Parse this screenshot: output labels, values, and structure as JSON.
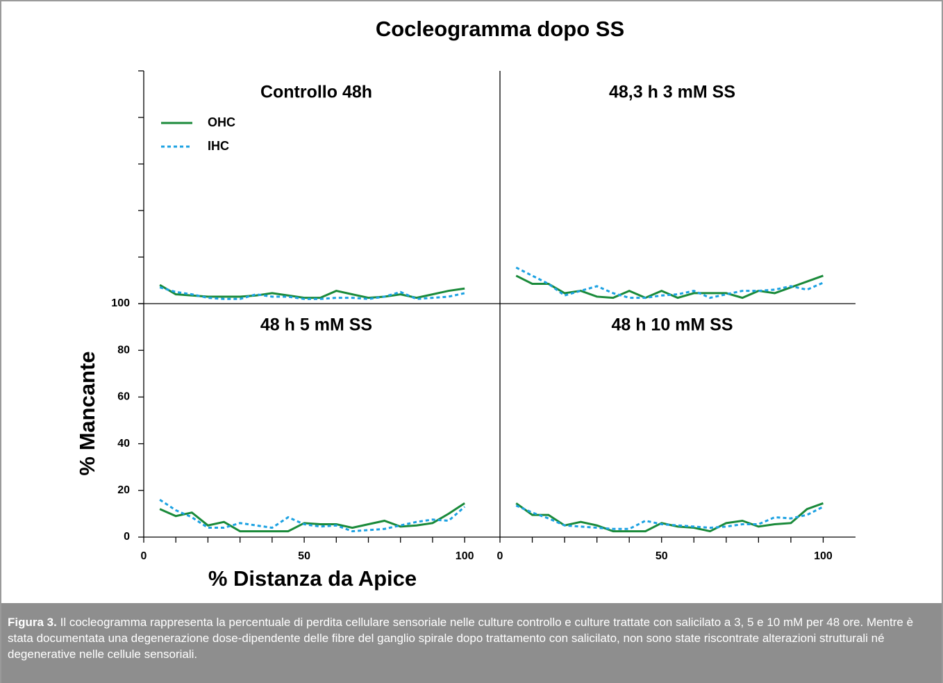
{
  "figure": {
    "title": "Cocleogramma dopo SS",
    "y_label": "% Mancante",
    "x_label": "% Distanza da Apice"
  },
  "caption": {
    "label": "Figura 3.",
    "text": "Il cocleogramma rappresenta la percentuale di perdita cellulare sensoriale nelle culture controllo e culture trattate con salicilato a 3, 5 e 10 mM per 48 ore. Mentre è stata documentata una degenerazione dose-dipendente delle fibre del ganglio spirale dopo trattamento con salicilato, non sono state riscontrate alterazioni strutturali né degenerative nelle cellule sensoriali."
  },
  "chart_data": [
    {
      "type": "line",
      "title": "Controllo 48h",
      "legend": "upper left",
      "x": [
        5,
        10,
        15,
        20,
        25,
        30,
        35,
        40,
        45,
        50,
        55,
        60,
        65,
        70,
        75,
        80,
        85,
        90,
        95,
        100
      ],
      "series": [
        {
          "name": "OHC",
          "color": "#1a8a3a",
          "style": "solid",
          "values": [
            8,
            4,
            3.5,
            3,
            3,
            3,
            3.5,
            4.5,
            3.5,
            2.5,
            2.5,
            5.5,
            4,
            2.5,
            3,
            4,
            2.5,
            4,
            5.5,
            6.5
          ]
        },
        {
          "name": "IHC",
          "color": "#1ba1e2",
          "style": "dotted",
          "values": [
            7,
            5,
            4,
            2.5,
            2,
            2,
            4,
            3,
            3,
            2,
            2,
            2.5,
            2.5,
            2,
            3,
            5,
            2,
            2.5,
            3,
            4.5
          ]
        }
      ],
      "xlim": [
        0,
        111
      ],
      "ylim": [
        0,
        100
      ],
      "yticks": [
        0,
        20,
        40,
        60,
        80,
        100
      ],
      "ytick_labels": false
    },
    {
      "type": "line",
      "title": "48,3 h 3 mM SS",
      "x": [
        5,
        10,
        15,
        20,
        25,
        30,
        35,
        40,
        45,
        50,
        55,
        60,
        65,
        70,
        75,
        80,
        85,
        90,
        95,
        100
      ],
      "series": [
        {
          "color": "#1a8a3a",
          "style": "solid",
          "values": [
            12,
            8.5,
            8.5,
            4.5,
            5.5,
            3,
            2.5,
            5.5,
            2.5,
            5.5,
            2.5,
            4.5,
            4.5,
            4.5,
            2.5,
            5.5,
            4.5,
            7,
            9.5,
            12
          ]
        },
        {
          "color": "#1ba1e2",
          "style": "dotted",
          "values": [
            15.5,
            12,
            8.5,
            3.5,
            5.5,
            7.5,
            4.5,
            2.5,
            2.5,
            3.5,
            4,
            5.5,
            2.5,
            4,
            5.5,
            5.5,
            6,
            7.5,
            6,
            9
          ]
        }
      ],
      "xlim": [
        0,
        110
      ],
      "ylim": [
        0,
        100
      ]
    },
    {
      "type": "line",
      "title": "48 h 5 mM SS",
      "x": [
        5,
        10,
        15,
        20,
        25,
        30,
        35,
        40,
        45,
        50,
        55,
        60,
        65,
        70,
        75,
        80,
        85,
        90,
        95,
        100
      ],
      "series": [
        {
          "color": "#1a8a3a",
          "style": "solid",
          "values": [
            12,
            9,
            10.5,
            5,
            6.5,
            2.5,
            2.5,
            2.5,
            2.5,
            6,
            5.5,
            5.5,
            4,
            5.5,
            7,
            4.5,
            5,
            6,
            10,
            14.5
          ]
        },
        {
          "color": "#1ba1e2",
          "style": "dotted",
          "values": [
            16,
            11.5,
            8.5,
            4,
            4,
            6,
            5,
            4,
            8.5,
            5.5,
            4.5,
            5,
            2.5,
            3,
            3.5,
            5,
            6.5,
            7.5,
            7,
            13
          ]
        }
      ],
      "xlim": [
        0,
        111
      ],
      "ylim": [
        0,
        100
      ],
      "yticks": [
        0,
        20,
        40,
        60,
        80,
        100
      ],
      "ytick_labels": true,
      "xticks": [
        0,
        50,
        100
      ],
      "xminor_ticks": [
        10,
        20,
        30,
        40,
        60,
        70,
        80,
        90
      ]
    },
    {
      "type": "line",
      "title": "48 h 10 mM SS",
      "x": [
        5,
        10,
        15,
        20,
        25,
        30,
        35,
        40,
        45,
        50,
        55,
        60,
        65,
        70,
        75,
        80,
        85,
        90,
        95,
        100
      ],
      "series": [
        {
          "color": "#1a8a3a",
          "style": "solid",
          "values": [
            14.5,
            9.5,
            9.5,
            5,
            6.5,
            5,
            2.5,
            2.5,
            2.5,
            6,
            4.5,
            4,
            2.5,
            6,
            7,
            4.5,
            5.5,
            6,
            12,
            14.5
          ]
        },
        {
          "color": "#1ba1e2",
          "style": "dotted",
          "values": [
            13.5,
            10.5,
            8,
            5,
            4.5,
            4,
            3.5,
            3.5,
            7,
            5.5,
            5,
            4.5,
            4,
            4.5,
            5.5,
            5.5,
            8.5,
            8,
            9.5,
            13
          ]
        }
      ],
      "xlim": [
        0,
        110
      ],
      "ylim": [
        0,
        100
      ],
      "xticks": [
        0,
        50,
        100
      ],
      "xminor_ticks": [
        10,
        20,
        30,
        40,
        60,
        70,
        80,
        90
      ]
    }
  ]
}
